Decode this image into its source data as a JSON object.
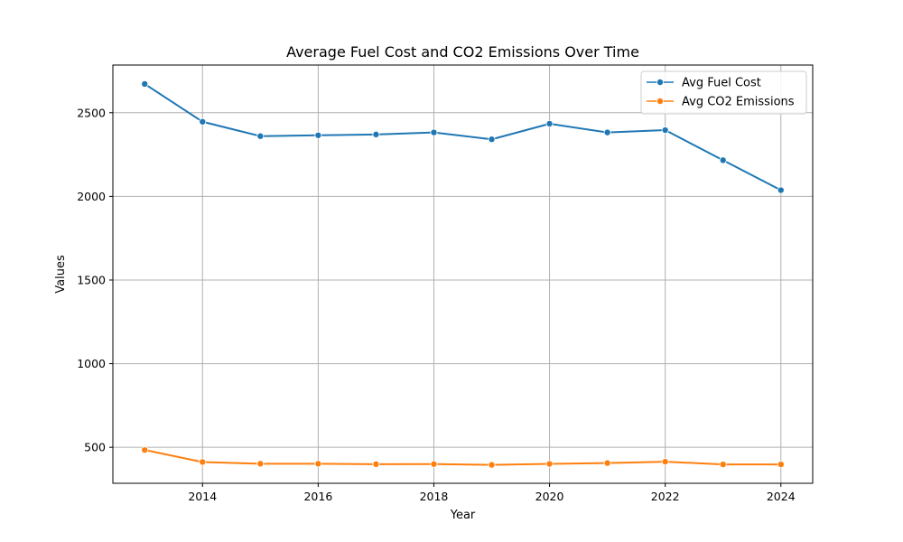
{
  "chart_data": {
    "type": "line",
    "title": "Average Fuel Cost and CO2 Emissions Over Time",
    "xlabel": "Year",
    "ylabel": "Values",
    "x": [
      2013,
      2014,
      2015,
      2016,
      2017,
      2018,
      2019,
      2020,
      2021,
      2022,
      2023,
      2024
    ],
    "xlim": [
      2012.45,
      2024.55
    ],
    "ylim": [
      285,
      2785
    ],
    "xticks": [
      2014,
      2016,
      2018,
      2020,
      2022,
      2024
    ],
    "yticks": [
      500,
      1000,
      1500,
      2000,
      2500
    ],
    "grid": true,
    "legend_position": "top-right",
    "series": [
      {
        "name": "Avg Fuel Cost",
        "color": "#1f77b4",
        "marker": "circle",
        "values": [
          2672,
          2446,
          2360,
          2365,
          2370,
          2382,
          2341,
          2434,
          2382,
          2396,
          2216,
          2037
        ]
      },
      {
        "name": "Avg CO2 Emissions",
        "color": "#ff7f0e",
        "marker": "circle",
        "values": [
          484,
          412,
          402,
          402,
          399,
          400,
          395,
          401,
          406,
          414,
          398,
          398
        ]
      }
    ]
  }
}
